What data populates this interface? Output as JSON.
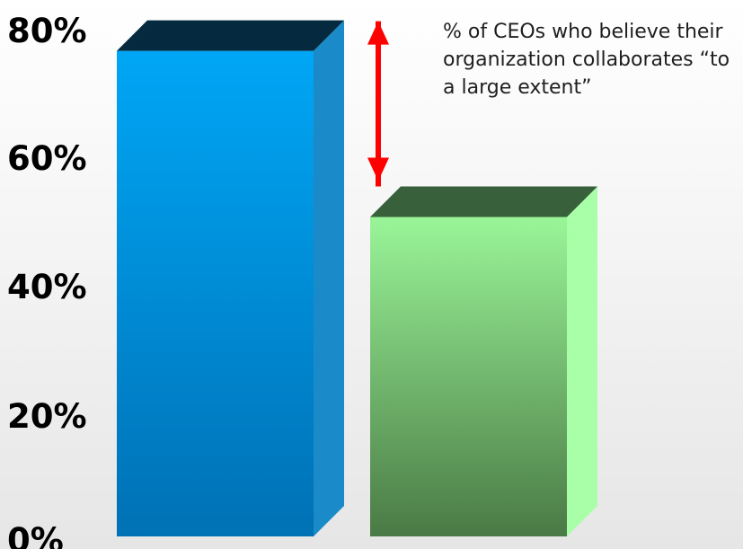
{
  "chart_data": {
    "type": "bar",
    "categories": [
      "",
      ""
    ],
    "values": [
      76,
      50
    ],
    "ylim": [
      0,
      80
    ],
    "yticks": [
      0,
      20,
      40,
      60,
      80
    ],
    "ytick_labels": [
      "0%",
      "20%",
      "40%",
      "60%",
      "80%"
    ],
    "grid": false,
    "bar_colors": [
      {
        "top": "#00a6f5",
        "bottom": "#0071b5",
        "side": "#1a8bc8",
        "cap": "#052a40"
      },
      {
        "top": "#9af598",
        "bottom": "#4a7a45",
        "side": "#a9ffa7",
        "cap": "#38603a"
      }
    ],
    "annotation": {
      "text": "% of CEOs who believe their organization collaborates “to a large extent”",
      "arrow_color": "#ff0000"
    }
  }
}
